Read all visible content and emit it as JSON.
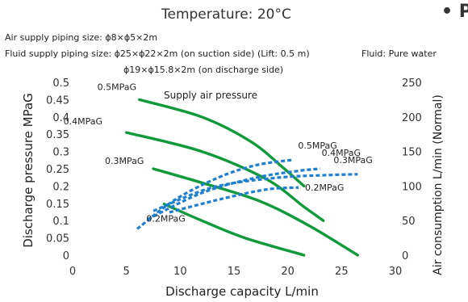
{
  "header": {
    "title": "Temperature: 20°C",
    "corner_text": "• P"
  },
  "notes": {
    "air_piping": "Air supply piping size: ϕ8×ϕ5×2m",
    "fluid_piping": "Fluid supply piping size: ϕ25×ϕ22×2m (on suction side) (Lift: 0.5 m)",
    "fluid": "Fluid: Pure water",
    "discharge_piping": "ϕ19×ϕ15.8×2m (on discharge side)"
  },
  "chart_data": {
    "type": "line",
    "title": "",
    "xlabel": "Discharge capacity   L/min",
    "ylabel": "Discharge pressure   MPaG",
    "y2label": "Air consumption   L/min (Normal)",
    "xlim": [
      0,
      30
    ],
    "ylim": [
      0,
      0.5
    ],
    "y2lim": [
      0,
      250
    ],
    "x_ticks": [
      "0",
      "5",
      "10",
      "15",
      "20",
      "25",
      "30"
    ],
    "y_ticks": [
      "0",
      "0.05",
      "0.1",
      "0.15",
      "0.2",
      "0.25",
      "0.3",
      "0.35",
      "0.4",
      "0.45",
      "0.5"
    ],
    "y2_ticks": [
      "0",
      "50",
      "100",
      "150",
      "200",
      "250"
    ],
    "annotation": "Supply air pressure",
    "grid": false,
    "series": [
      {
        "name": "0.5MPaG",
        "kind": "discharge-pressure",
        "axis": "left",
        "color": "#119a3c",
        "x": [
          6.2,
          12,
          16.5,
          19.5,
          21.5
        ],
        "y": [
          0.45,
          0.4,
          0.33,
          0.255,
          0.2
        ]
      },
      {
        "name": "0.4MPaG",
        "kind": "discharge-pressure",
        "axis": "left",
        "color": "#119a3c",
        "x": [
          5,
          12,
          18,
          21.5,
          23.3
        ],
        "y": [
          0.355,
          0.3,
          0.22,
          0.14,
          0.1
        ]
      },
      {
        "name": "0.3MPaG",
        "kind": "discharge-pressure",
        "axis": "left",
        "color": "#119a3c",
        "x": [
          7.5,
          12.5,
          17.5,
          22,
          26.5
        ],
        "y": [
          0.25,
          0.205,
          0.155,
          0.085,
          0
        ]
      },
      {
        "name": "0.2MPaG",
        "kind": "discharge-pressure",
        "axis": "left",
        "color": "#119a3c",
        "x": [
          8.5,
          12,
          16,
          21.5
        ],
        "y": [
          0.148,
          0.1,
          0.05,
          0
        ]
      },
      {
        "name": "0.5MPaG",
        "kind": "air-consumption",
        "axis": "right",
        "color": "#1f7fd0",
        "x": [
          6,
          9.5,
          13.5,
          17,
          20.5
        ],
        "y": [
          38,
          80,
          112,
          130,
          138
        ]
      },
      {
        "name": "0.4MPaG",
        "kind": "air-consumption",
        "axis": "right",
        "color": "#1f7fd0",
        "x": [
          7,
          12,
          17,
          21,
          23
        ],
        "y": [
          52,
          90,
          112,
          122,
          125
        ]
      },
      {
        "name": "0.3MPaG",
        "kind": "air-consumption",
        "axis": "right",
        "color": "#1f7fd0",
        "x": [
          7.5,
          13,
          19,
          24,
          26.5
        ],
        "y": [
          64,
          98,
          112,
          116,
          117
        ]
      },
      {
        "name": "0.2MPaG",
        "kind": "air-consumption",
        "axis": "right",
        "color": "#1f7fd0",
        "x": [
          9,
          14,
          18,
          21
        ],
        "y": [
          62,
          82,
          95,
          98
        ]
      }
    ]
  }
}
